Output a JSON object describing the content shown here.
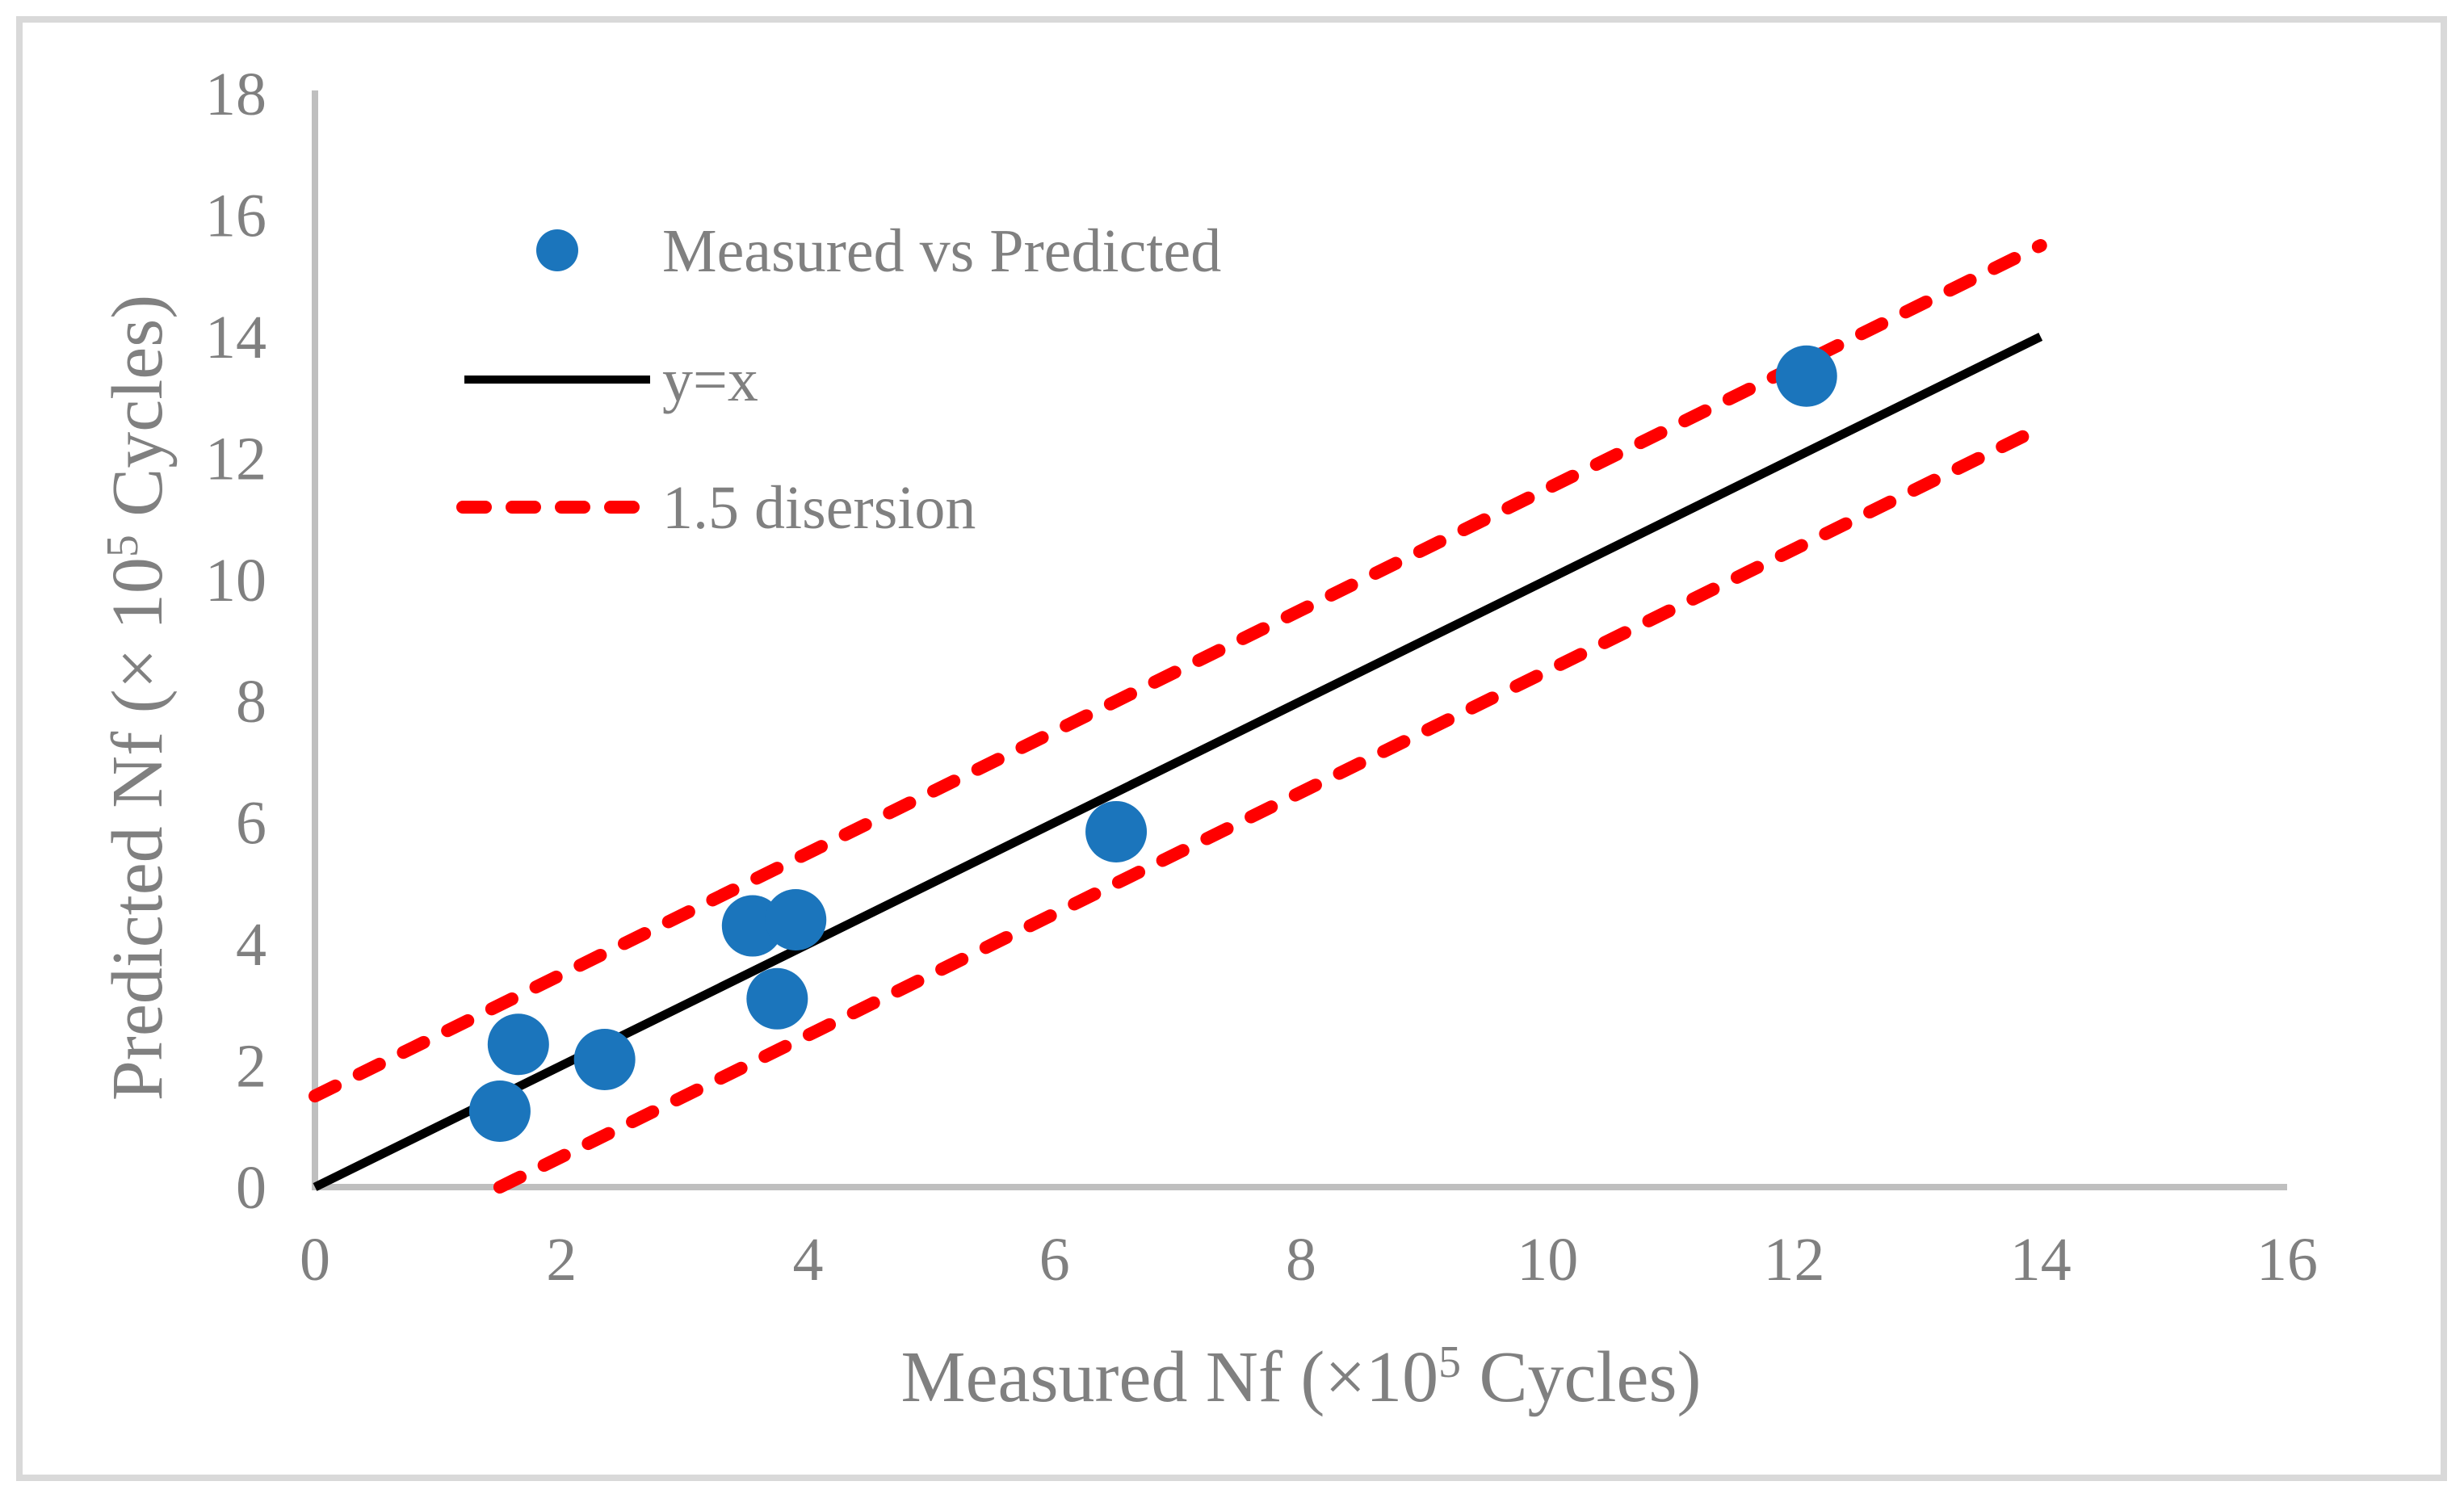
{
  "chart_data": {
    "type": "scatter",
    "title": "",
    "xlabel": "Measured Nf (×10⁵ Cycles)",
    "ylabel": "Predicted Nf (× 10⁵ Cycles)",
    "xlabel_parts": [
      {
        "t": "Measured Nf (×10"
      },
      {
        "t": "5",
        "sup": true
      },
      {
        "t": " Cycles)"
      }
    ],
    "ylabel_parts": [
      {
        "t": "Predicted Nf (× 10"
      },
      {
        "t": "5",
        "sup": true
      },
      {
        "t": " Cycles)"
      }
    ],
    "xlim": [
      0,
      16
    ],
    "ylim": [
      0,
      18
    ],
    "xticks": [
      0,
      2,
      4,
      6,
      8,
      10,
      12,
      14,
      16
    ],
    "yticks": [
      0,
      2,
      4,
      6,
      8,
      10,
      12,
      14,
      16,
      18
    ],
    "grid": false,
    "legend": {
      "position": "inside-top-left",
      "entries": [
        {
          "label": "Measured vs Predicted",
          "swatch": "marker",
          "color": "#1B75BC"
        },
        {
          "label": "y=x",
          "swatch": "line",
          "color": "#000000"
        },
        {
          "label": "1.5 disersion",
          "swatch": "dashed-line",
          "color": "#FF0000"
        }
      ]
    },
    "series": [
      {
        "name": "Measured vs Predicted",
        "type": "scatter",
        "color": "#1B75BC",
        "points": [
          [
            1.5,
            1.25
          ],
          [
            1.65,
            2.35
          ],
          [
            2.35,
            2.1
          ],
          [
            3.55,
            4.3
          ],
          [
            3.9,
            4.4
          ],
          [
            3.75,
            3.1
          ],
          [
            6.5,
            5.85
          ],
          [
            12.1,
            13.35
          ]
        ]
      },
      {
        "name": "y=x",
        "type": "line",
        "color": "#000000",
        "x": [
          0,
          14
        ],
        "y": [
          0,
          14
        ]
      },
      {
        "name": "1.5 dispersion upper bound",
        "type": "dashed-line",
        "color": "#FF0000",
        "x": [
          0,
          14
        ],
        "y": [
          1.5,
          15.5
        ]
      },
      {
        "name": "1.5 dispersion lower bound",
        "type": "dashed-line",
        "color": "#FF0000",
        "x": [
          1.5,
          14
        ],
        "y": [
          0,
          12.5
        ]
      }
    ],
    "colors": {
      "marker": "#1B75BC",
      "identity_line": "#000000",
      "dispersion_line": "#FF0000",
      "axis_line": "#BFBFBF",
      "text": "#808080",
      "border": "#D9D9D9",
      "background": "#FFFFFF"
    }
  }
}
